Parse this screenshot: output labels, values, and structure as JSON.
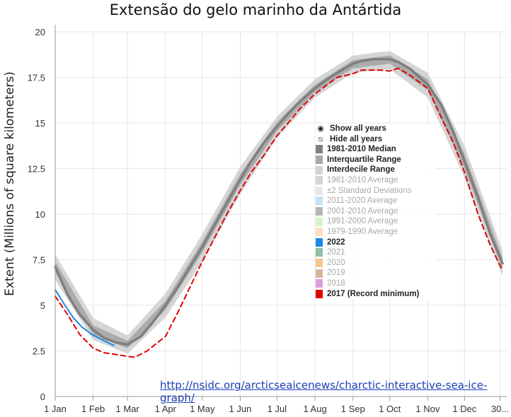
{
  "chart_data": {
    "type": "line",
    "title": "Extensão do gelo marinho da Antártida",
    "ylabel": "Extent (Millions of square kilometers)",
    "xlabel": "",
    "ylim": [
      0,
      20
    ],
    "yticks": [
      0,
      2.5,
      5,
      7.5,
      10,
      12.5,
      15,
      17.5,
      20
    ],
    "xticks": [
      {
        "label": "1 Jan",
        "day": 0
      },
      {
        "label": "1 Feb",
        "day": 31
      },
      {
        "label": "1 Mar",
        "day": 59
      },
      {
        "label": "1 Apr",
        "day": 90
      },
      {
        "label": "1 May",
        "day": 120
      },
      {
        "label": "1 Jun",
        "day": 151
      },
      {
        "label": "1 Jul",
        "day": 181
      },
      {
        "label": "1 Aug",
        "day": 212
      },
      {
        "label": "1 Sep",
        "day": 243
      },
      {
        "label": "1 Oct",
        "day": 273
      },
      {
        "label": "1 Nov",
        "day": 304
      },
      {
        "label": "1 Dec",
        "day": 334
      },
      {
        "label": "30...",
        "day": 363
      }
    ],
    "grid": true,
    "legend_position": "center-right",
    "series": [
      {
        "name": "1981-2010 Median",
        "color": "#7f7f7f",
        "style": "solid",
        "x": [
          0,
          10,
          20,
          31,
          40,
          50,
          59,
          70,
          80,
          90,
          100,
          110,
          120,
          130,
          140,
          151,
          160,
          170,
          181,
          190,
          200,
          212,
          220,
          230,
          243,
          250,
          260,
          273,
          280,
          290,
          304,
          315,
          325,
          334,
          345,
          355,
          365
        ],
        "y": [
          7.1,
          5.6,
          4.5,
          3.65,
          3.2,
          2.95,
          2.85,
          3.3,
          4.1,
          5.0,
          6.0,
          7.1,
          8.2,
          9.4,
          10.6,
          11.9,
          12.9,
          13.9,
          14.8,
          15.5,
          16.2,
          16.9,
          17.3,
          17.75,
          18.25,
          18.4,
          18.5,
          18.5,
          18.35,
          17.95,
          17.1,
          16.0,
          14.5,
          12.9,
          10.9,
          8.9,
          7.3
        ]
      },
      {
        "name": "Interquartile Range",
        "color": "#a9a9a9",
        "x": [
          0,
          31,
          59,
          90,
          120,
          151,
          181,
          212,
          243,
          273,
          304,
          334,
          365
        ],
        "low": [
          6.8,
          3.4,
          2.65,
          4.75,
          7.9,
          11.6,
          14.55,
          16.7,
          18.0,
          18.25,
          16.8,
          12.5,
          7.0
        ],
        "high": [
          7.4,
          3.9,
          3.05,
          5.25,
          8.5,
          12.2,
          15.05,
          17.1,
          18.45,
          18.7,
          17.4,
          13.3,
          7.6
        ]
      },
      {
        "name": "Interdecile Range",
        "color": "#d3d3d3",
        "x": [
          0,
          31,
          59,
          90,
          120,
          151,
          181,
          212,
          243,
          273,
          304,
          334,
          365
        ],
        "low": [
          6.4,
          3.1,
          2.35,
          4.35,
          7.4,
          11.1,
          14.2,
          16.4,
          17.75,
          17.95,
          16.4,
          12.0,
          6.6
        ],
        "high": [
          7.8,
          4.3,
          3.35,
          5.65,
          8.9,
          12.6,
          15.35,
          17.4,
          18.7,
          18.95,
          17.75,
          13.75,
          8.0
        ]
      },
      {
        "name": "2022",
        "color": "#1e88e5",
        "style": "solid",
        "x": [
          0,
          8,
          15,
          22,
          30,
          40,
          48
        ],
        "y": [
          5.85,
          5.0,
          4.3,
          3.8,
          3.4,
          3.05,
          2.8
        ]
      },
      {
        "name": "2017 (Record minimum)",
        "color": "#e00000",
        "style": "dashed",
        "x": [
          0,
          10,
          20,
          31,
          40,
          50,
          59,
          65,
          75,
          90,
          100,
          110,
          120,
          130,
          140,
          151,
          160,
          170,
          181,
          190,
          200,
          212,
          220,
          230,
          243,
          250,
          260,
          265,
          273,
          280,
          290,
          304,
          315,
          325,
          334,
          345,
          355,
          365
        ],
        "y": [
          5.5,
          4.5,
          3.4,
          2.65,
          2.4,
          2.3,
          2.2,
          2.15,
          2.5,
          3.3,
          4.6,
          6.0,
          7.4,
          8.7,
          10.0,
          11.3,
          12.3,
          13.2,
          14.3,
          15.0,
          15.8,
          16.6,
          17.0,
          17.5,
          17.7,
          17.9,
          17.9,
          17.9,
          17.85,
          18.0,
          17.6,
          16.9,
          15.3,
          13.9,
          12.3,
          10.0,
          8.3,
          6.9
        ]
      }
    ]
  },
  "legend": {
    "items": [
      {
        "label": "Show all years",
        "icon": "eye-icon",
        "active": true
      },
      {
        "label": "Hide all years",
        "icon": "eye-slash-icon",
        "active": true
      },
      {
        "label": "1981-2010 Median",
        "color": "#7f7f7f",
        "active": true
      },
      {
        "label": "Interquartile Range",
        "color": "#a9a9a9",
        "active": true
      },
      {
        "label": "Interdecile Range",
        "color": "#d3d3d3",
        "active": true
      },
      {
        "label": "1981-2010 Average",
        "color": "#d3d3d3",
        "active": false
      },
      {
        "label": "±2 Standard Deviations",
        "color": "#e8e8e8",
        "active": false
      },
      {
        "label": "2011-2020 Average",
        "color": "#c6e2f7",
        "active": false
      },
      {
        "label": "2001-2010 Average",
        "color": "#b5b5b5",
        "active": false
      },
      {
        "label": "1991-2000 Average",
        "color": "#d6f3c9",
        "active": false
      },
      {
        "label": "1979-1990 Average",
        "color": "#fde0c2",
        "active": false
      },
      {
        "label": "2022",
        "color": "#1e88e5",
        "active": true
      },
      {
        "label": "2021",
        "color": "#8fbfa5",
        "active": false
      },
      {
        "label": "2020",
        "color": "#f7c58c",
        "active": false
      },
      {
        "label": "2019",
        "color": "#d8b49d",
        "active": false
      },
      {
        "label": "2018",
        "color": "#dc9edc",
        "active": false
      },
      {
        "label": "2017 (Record minimum)",
        "color": "#e00000",
        "active": true
      }
    ]
  },
  "source_link": "http://nsidc.org/arcticseaicenews/charctic-interactive-sea-ice-graph/"
}
